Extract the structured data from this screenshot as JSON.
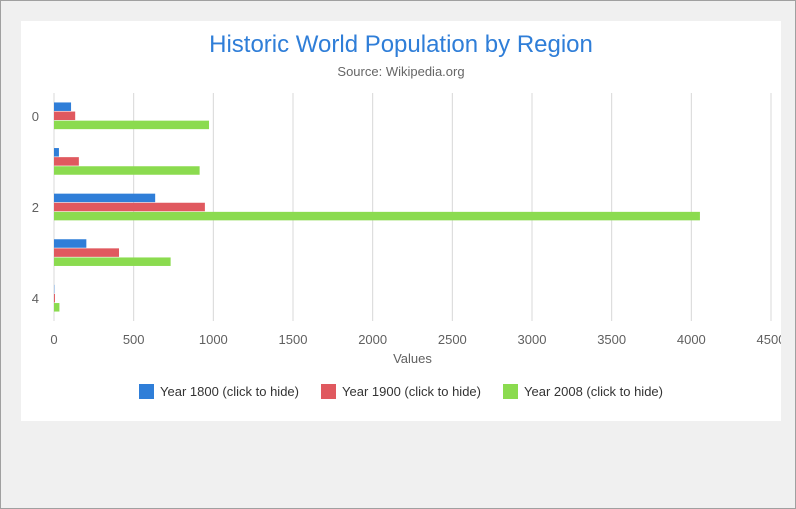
{
  "chart_data": {
    "type": "bar",
    "orientation": "horizontal",
    "title": "Historic World Population by Region",
    "subtitle": "Source: Wikipedia.org",
    "xlabel": "Values",
    "ylabel": "",
    "categories": [
      "0",
      "1",
      "2",
      "3",
      "4"
    ],
    "category_labels_shown": [
      "0",
      "",
      "2",
      "",
      "4"
    ],
    "xlim": [
      0,
      4500
    ],
    "x_ticks": [
      "0",
      "500",
      "1000",
      "1500",
      "2000",
      "2500",
      "3000",
      "3500",
      "4000",
      "4500"
    ],
    "grid": true,
    "legend_position": "bottom",
    "series": [
      {
        "name": "Year 1800 (click to hide)",
        "color": "#2f7ed8",
        "values": [
          107,
          31,
          635,
          203,
          2
        ]
      },
      {
        "name": "Year 1900 (click to hide)",
        "color": "#e0595f",
        "values": [
          133,
          156,
          947,
          408,
          6
        ]
      },
      {
        "name": "Year 2008 (click to hide)",
        "color": "#8bdb4f",
        "values": [
          973,
          914,
          4054,
          732,
          34
        ]
      }
    ]
  }
}
